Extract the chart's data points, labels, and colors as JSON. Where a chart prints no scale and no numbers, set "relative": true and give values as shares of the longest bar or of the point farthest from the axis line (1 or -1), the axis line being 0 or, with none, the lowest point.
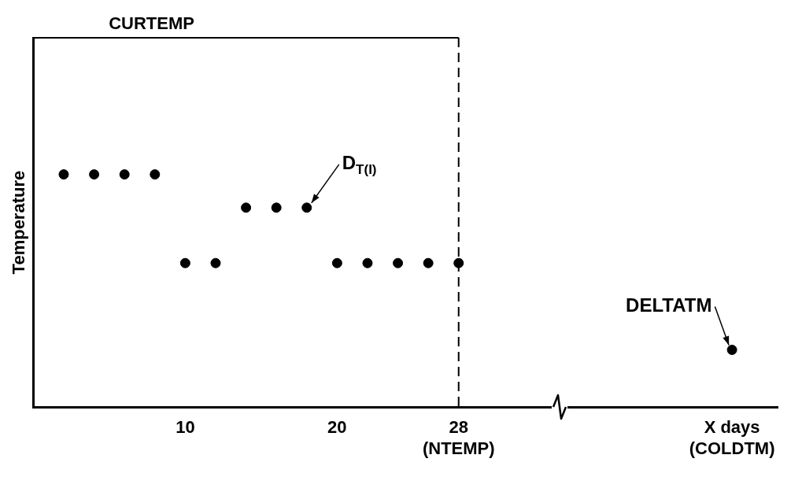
{
  "chart_data": {
    "type": "scatter",
    "ylabel": "Temperature",
    "relative": true,
    "series": [
      {
        "type": "line",
        "name": "CURTEMP",
        "color": "#000000",
        "marker": "none",
        "x": [
          0,
          28
        ],
        "values": [
          1,
          1
        ]
      },
      {
        "type": "scatter",
        "color": "#000000",
        "marker": "circle",
        "x": [
          2,
          4,
          6,
          8,
          10,
          12,
          14,
          16,
          18,
          20,
          22,
          24,
          26,
          28,
          46
        ],
        "values": [
          0.63,
          0.63,
          0.63,
          0.63,
          0.39,
          0.39,
          0.54,
          0.54,
          0.54,
          0.39,
          0.39,
          0.39,
          0.39,
          0.39,
          0.155
        ]
      }
    ],
    "xlim": [
      0,
      49
    ],
    "xticks": [
      10,
      20,
      {
        "value": 28,
        "label": "28\n(NTEMP)"
      },
      {
        "value": 46,
        "label": "X days\n(COLDTM)"
      }
    ],
    "ref_lines": [
      {
        "axis": "x",
        "value": 28,
        "line_style": "dashed",
        "color": "#000000"
      }
    ],
    "annotations": [
      {
        "text": "D$_{T(I)}$",
        "x": 18,
        "y": 0.54
      },
      {
        "text": "DELTATM",
        "x": 46,
        "y": 0.155
      }
    ],
    "grid": false,
    "legend": false
  }
}
